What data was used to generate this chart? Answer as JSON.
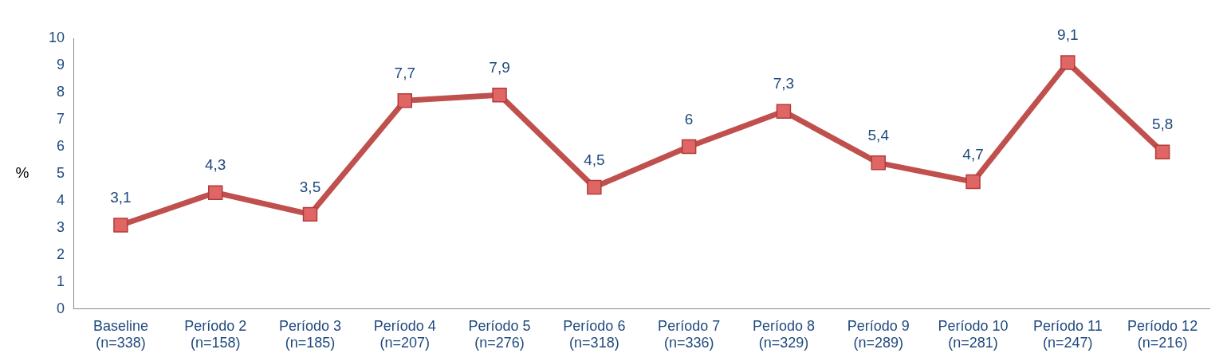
{
  "chart_data": {
    "type": "line",
    "ylabel": "%",
    "categories": [
      "Baseline\n(n=338)",
      "Período 2\n(n=158)",
      "Período 3\n(n=185)",
      "Período 4\n(n=207)",
      "Período 5\n(n=276)",
      "Período 6\n(n=318)",
      "Período 7\n(n=336)",
      "Período 8\n(n=329)",
      "Período 9\n(n=289)",
      "Período 10\n(n=281)",
      "Período 11\n(n=247)",
      "Período 12\n(n=216)"
    ],
    "series": [
      {
        "color": "#c0504d",
        "values": [
          3.1,
          4.3,
          3.5,
          7.7,
          7.9,
          4.5,
          6,
          7.3,
          5.4,
          4.7,
          9.1,
          5.8
        ],
        "value_labels": [
          "3,1",
          "4,3",
          "3,5",
          "7,7",
          "7,9",
          "4,5",
          "6",
          "7,3",
          "5,4",
          "4,7",
          "9,1",
          "5,8"
        ]
      }
    ],
    "ylim": [
      0,
      10
    ],
    "yticks": [
      0,
      1,
      2,
      3,
      4,
      5,
      6,
      7,
      8,
      9,
      10
    ],
    "grid": false,
    "legend": false,
    "marker": "square",
    "line_style": "solid"
  }
}
